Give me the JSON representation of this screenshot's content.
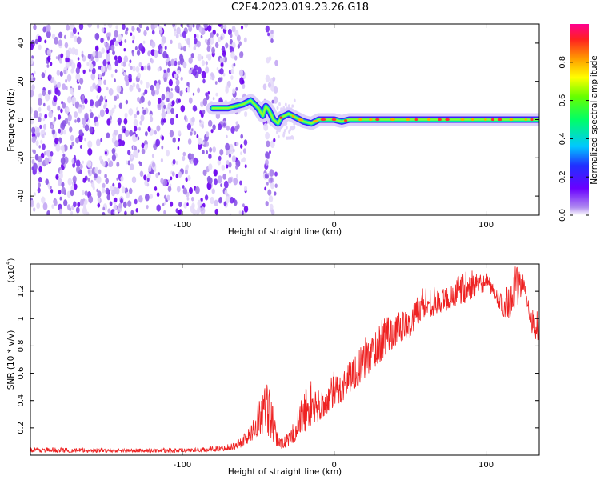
{
  "title": "C2E4.2023.019.23.26.G18",
  "chart_data": [
    {
      "type": "heatmap",
      "name": "spectrogram",
      "xlabel": "Height of straight line (km)",
      "ylabel": "Frequency (Hz)",
      "xlim": [
        -200,
        135
      ],
      "ylim": [
        -50,
        50
      ],
      "xticks": [
        -100,
        0,
        100
      ],
      "yticks": [
        -40,
        -20,
        0,
        20,
        40
      ],
      "noise_region_x": [
        -200,
        -38
      ],
      "noise_bands_x": [
        [
          -200,
          -58
        ],
        [
          -46,
          -38
        ]
      ],
      "signal_track": {
        "description": "strong narrow line near 0 Hz",
        "x": [
          -80,
          -70,
          -60,
          -55,
          -50,
          -47,
          -45,
          -43,
          -40,
          -37,
          -35,
          -30,
          -25,
          -20,
          -15,
          -10,
          -5,
          0,
          5,
          10,
          20,
          40,
          60,
          80,
          100,
          120,
          135
        ],
        "y": [
          6,
          6,
          8,
          10,
          6,
          2,
          7,
          5,
          0,
          -2,
          1,
          3,
          1,
          -1,
          -2,
          0,
          0,
          0,
          -1,
          0,
          0,
          0,
          0,
          0,
          0,
          0,
          0
        ]
      },
      "colorbar": {
        "label": "Normalized spectral amplitude",
        "range": [
          0.0,
          1.0
        ],
        "ticks": [
          0.0,
          0.2,
          0.4,
          0.6,
          0.8
        ]
      }
    },
    {
      "type": "line",
      "name": "snr",
      "xlabel": "Height of straight line (km)",
      "ylabel": "SNR (10 * v/v)",
      "y_multiplier_label": "(x10",
      "y_multiplier_exp": "4",
      "xlim": [
        -200,
        135
      ],
      "ylim": [
        0,
        1.4
      ],
      "xticks": [
        -100,
        0,
        100
      ],
      "yticks": [
        0.2,
        0.4,
        0.6,
        0.8,
        1.0,
        1.2
      ],
      "color": "#ee2222",
      "envelope": {
        "x": [
          -200,
          -150,
          -100,
          -75,
          -65,
          -60,
          -55,
          -50,
          -45,
          -42,
          -40,
          -38,
          -35,
          -30,
          -25,
          -20,
          -15,
          -10,
          -5,
          0,
          5,
          10,
          15,
          20,
          25,
          30,
          35,
          40,
          45,
          50,
          55,
          60,
          65,
          70,
          75,
          80,
          85,
          90,
          95,
          100,
          105,
          110,
          115,
          120,
          125,
          130,
          135
        ],
        "low": [
          0.02,
          0.02,
          0.02,
          0.03,
          0.04,
          0.06,
          0.1,
          0.14,
          0.16,
          0.12,
          0.08,
          0.06,
          0.05,
          0.06,
          0.1,
          0.16,
          0.22,
          0.24,
          0.3,
          0.34,
          0.38,
          0.46,
          0.5,
          0.56,
          0.62,
          0.68,
          0.74,
          0.8,
          0.84,
          0.86,
          0.96,
          1.0,
          1.02,
          1.04,
          1.06,
          1.08,
          1.1,
          1.14,
          1.18,
          1.2,
          1.16,
          1.02,
          1.0,
          1.08,
          1.2,
          0.9,
          0.8
        ],
        "high": [
          0.06,
          0.05,
          0.05,
          0.07,
          0.1,
          0.16,
          0.22,
          0.4,
          0.56,
          0.5,
          0.32,
          0.2,
          0.14,
          0.16,
          0.3,
          0.48,
          0.56,
          0.48,
          0.5,
          0.62,
          0.62,
          0.72,
          0.74,
          0.86,
          0.92,
          0.96,
          1.08,
          1.02,
          1.08,
          1.04,
          1.22,
          1.26,
          1.24,
          1.2,
          1.26,
          1.32,
          1.34,
          1.36,
          1.32,
          1.34,
          1.26,
          1.18,
          1.3,
          1.4,
          1.32,
          1.08,
          1.05
        ]
      }
    }
  ]
}
